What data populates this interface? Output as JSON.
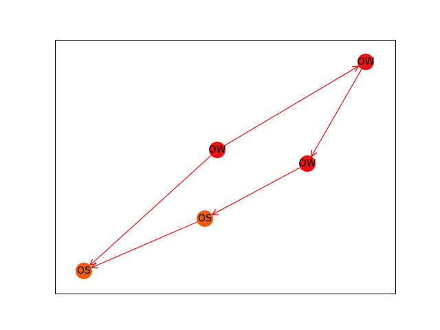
{
  "colors": {
    "edge": "#ee1111",
    "node_ow": "#ee1111",
    "node_os": "#f25a0d",
    "frame": "#000000",
    "label": "#000000"
  },
  "graph": {
    "nodes": [
      {
        "id": "n1",
        "label": "OW",
        "group": "OW"
      },
      {
        "id": "n2",
        "label": "OW",
        "group": "OW"
      },
      {
        "id": "n3",
        "label": "OW",
        "group": "OW"
      },
      {
        "id": "n4",
        "label": "OS",
        "group": "OS"
      },
      {
        "id": "n5",
        "label": "OS",
        "group": "OS"
      }
    ],
    "edges": [
      {
        "from": "n2",
        "to": "n1"
      },
      {
        "from": "n1",
        "to": "n3"
      },
      {
        "from": "n3",
        "to": "n4"
      },
      {
        "from": "n4",
        "to": "n5"
      },
      {
        "from": "n2",
        "to": "n5"
      }
    ]
  }
}
